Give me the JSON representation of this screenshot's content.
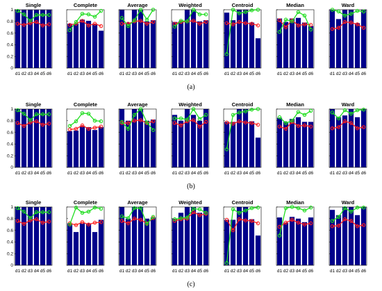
{
  "figure": {
    "panel_labels": [
      "(a)",
      "(b)",
      "(c)"
    ],
    "colors": {
      "bar": "#00008b",
      "red_series": "#ff2020",
      "green_series": "#20dd20",
      "frame": "#000000"
    }
  },
  "chart_data": [
    {
      "panel": "(a)",
      "type": "bar",
      "ylim": [
        0,
        1
      ],
      "yticks": [
        "0",
        "0.2",
        "0.4",
        "0.6",
        "0.8",
        "1"
      ],
      "categories": [
        "d1",
        "d2",
        "d3",
        "d4",
        "d5",
        "d6"
      ],
      "subplots": [
        {
          "title": "Single",
          "bars": [
            1.0,
            1.0,
            1.0,
            1.0,
            1.0,
            1.0
          ],
          "red": [
            0.76,
            0.74,
            0.77,
            0.79,
            0.73,
            0.75
          ],
          "green": [
            0.98,
            0.92,
            0.81,
            0.91,
            0.91,
            0.91
          ]
        },
        {
          "title": "Complete",
          "bars": [
            0.76,
            0.76,
            0.83,
            0.81,
            0.76,
            0.64
          ],
          "red": [
            0.74,
            0.76,
            0.81,
            0.73,
            0.76,
            0.72
          ],
          "green": [
            0.65,
            0.79,
            0.93,
            0.92,
            0.88,
            0.98
          ]
        },
        {
          "title": "Average",
          "bars": [
            1.0,
            0.78,
            1.0,
            1.0,
            0.8,
            0.82
          ],
          "red": [
            0.76,
            0.76,
            0.8,
            0.81,
            0.76,
            0.79
          ],
          "green": [
            0.86,
            0.72,
            0.82,
            1.0,
            0.83,
            1.0
          ]
        },
        {
          "title": "Weighted",
          "bars": [
            0.79,
            0.8,
            1.0,
            1.0,
            0.8,
            0.82
          ],
          "red": [
            0.76,
            0.79,
            0.8,
            0.81,
            0.76,
            0.79
          ],
          "green": [
            0.71,
            0.81,
            0.8,
            1.0,
            0.92,
            0.92
          ]
        },
        {
          "title": "Centroid",
          "bars": [
            0.95,
            0.82,
            1.0,
            1.0,
            0.78,
            0.51
          ],
          "red": [
            0.77,
            0.75,
            0.79,
            0.77,
            0.76,
            0.73
          ],
          "green": [
            0.24,
            1.0,
            0.94,
            0.96,
            0.99,
            1.0
          ]
        },
        {
          "title": "Median",
          "bars": [
            0.85,
            0.79,
            0.85,
            0.86,
            0.78,
            0.72
          ],
          "red": [
            0.82,
            0.7,
            0.82,
            0.73,
            0.75,
            0.74
          ],
          "green": [
            0.62,
            0.83,
            0.8,
            0.96,
            0.9,
            0.66
          ]
        },
        {
          "title": "Ward",
          "bars": [
            1.0,
            0.84,
            1.0,
            1.0,
            0.77,
            1.0
          ],
          "red": [
            0.67,
            0.69,
            0.79,
            0.78,
            0.75,
            0.69
          ],
          "green": [
            1.0,
            0.97,
            0.9,
            0.93,
            0.98,
            0.97
          ]
        }
      ]
    },
    {
      "panel": "(b)",
      "type": "bar",
      "ylim": [
        0,
        1
      ],
      "yticks": [
        "0",
        "0.2",
        "0.4",
        "0.6",
        "0.8",
        "1"
      ],
      "categories": [
        "d1",
        "d2",
        "d3",
        "d4",
        "d5",
        "d6"
      ],
      "subplots": [
        {
          "title": "Single",
          "bars": [
            1.0,
            1.0,
            1.0,
            1.0,
            1.0,
            1.0
          ],
          "red": [
            0.76,
            0.71,
            0.77,
            0.79,
            0.73,
            0.75
          ],
          "green": [
            0.98,
            0.92,
            0.81,
            0.91,
            0.91,
            0.91
          ]
        },
        {
          "title": "Complete",
          "bars": [
            0.62,
            0.63,
            0.71,
            0.69,
            0.64,
            0.69
          ],
          "red": [
            0.65,
            0.66,
            0.72,
            0.66,
            0.68,
            0.7
          ],
          "green": [
            0.71,
            0.79,
            0.93,
            0.92,
            0.8,
            0.79
          ]
        },
        {
          "title": "Average",
          "bars": [
            1.0,
            0.8,
            1.0,
            1.0,
            0.8,
            0.82
          ],
          "red": [
            0.76,
            0.76,
            0.8,
            0.81,
            0.76,
            0.79
          ],
          "green": [
            0.78,
            0.66,
            0.9,
            1.0,
            0.77,
            0.64
          ]
        },
        {
          "title": "Weighted",
          "bars": [
            0.9,
            0.8,
            1.0,
            0.9,
            0.8,
            1.0
          ],
          "red": [
            0.76,
            0.72,
            0.79,
            0.81,
            0.7,
            0.78
          ],
          "green": [
            0.84,
            0.84,
            0.82,
            1.0,
            0.83,
            0.9
          ]
        },
        {
          "title": "Centroid",
          "bars": [
            0.78,
            0.78,
            1.0,
            1.0,
            0.79,
            0.51
          ],
          "red": [
            0.77,
            0.75,
            0.79,
            0.77,
            0.76,
            0.73
          ],
          "green": [
            0.31,
            0.9,
            0.94,
            0.96,
            0.99,
            1.0
          ]
        },
        {
          "title": "Median",
          "bars": [
            0.85,
            0.78,
            0.83,
            0.86,
            0.78,
            0.78
          ],
          "red": [
            0.7,
            0.66,
            0.78,
            0.71,
            0.72,
            0.7
          ],
          "green": [
            0.86,
            0.76,
            0.8,
            0.95,
            0.9,
            0.97
          ]
        },
        {
          "title": "Ward",
          "bars": [
            1.0,
            0.86,
            0.89,
            1.0,
            0.86,
            1.0
          ],
          "red": [
            0.67,
            0.69,
            0.79,
            0.76,
            0.67,
            0.69
          ],
          "green": [
            0.94,
            0.84,
            0.98,
            0.92,
            0.98,
            0.99
          ]
        }
      ]
    },
    {
      "panel": "(c)",
      "type": "bar",
      "ylim": [
        0,
        1
      ],
      "yticks": [
        "0",
        "0.2",
        "0.4",
        "0.6",
        "0.8",
        "1"
      ],
      "categories": [
        "d1",
        "d2",
        "d3",
        "d4",
        "d5",
        "d6"
      ],
      "subplots": [
        {
          "title": "Single",
          "bars": [
            1.0,
            1.0,
            1.0,
            1.0,
            1.0,
            1.0
          ],
          "red": [
            0.76,
            0.71,
            0.77,
            0.79,
            0.73,
            0.75
          ],
          "green": [
            0.98,
            0.92,
            0.81,
            0.91,
            0.91,
            0.91
          ]
        },
        {
          "title": "Complete",
          "bars": [
            0.72,
            0.57,
            0.72,
            0.72,
            0.57,
            0.78
          ],
          "red": [
            0.72,
            0.69,
            0.74,
            0.7,
            0.73,
            0.74
          ],
          "green": [
            0.7,
            0.99,
            0.9,
            0.92,
            0.99,
            0.97
          ]
        },
        {
          "title": "Average",
          "bars": [
            1.0,
            0.8,
            1.0,
            1.0,
            0.8,
            0.82
          ],
          "red": [
            0.76,
            0.72,
            0.8,
            0.78,
            0.72,
            0.81
          ],
          "green": [
            0.84,
            0.81,
            0.98,
            0.98,
            0.71,
            0.83
          ]
        },
        {
          "title": "Weighted",
          "bars": [
            0.8,
            0.9,
            1.0,
            1.0,
            0.9,
            1.0
          ],
          "red": [
            0.76,
            0.79,
            0.8,
            0.91,
            0.86,
            0.88
          ],
          "green": [
            0.79,
            0.81,
            0.82,
            0.97,
            0.96,
            0.9
          ]
        },
        {
          "title": "Centroid",
          "bars": [
            0.78,
            0.78,
            1.0,
            1.0,
            0.79,
            0.51
          ],
          "red": [
            0.78,
            0.6,
            0.79,
            0.77,
            0.76,
            0.72
          ],
          "green": [
            0.04,
            0.96,
            0.9,
            0.94,
            0.98,
            0.99
          ]
        },
        {
          "title": "Median",
          "bars": [
            0.82,
            0.73,
            0.83,
            0.8,
            0.74,
            0.82
          ],
          "red": [
            0.66,
            0.73,
            0.78,
            0.73,
            0.7,
            0.72
          ],
          "green": [
            0.51,
            0.98,
            1.0,
            0.98,
            0.94,
            0.99
          ]
        },
        {
          "title": "Ward",
          "bars": [
            0.95,
            0.86,
            1.0,
            1.0,
            0.86,
            1.0
          ],
          "red": [
            0.67,
            0.68,
            0.79,
            0.76,
            0.67,
            0.69
          ],
          "green": [
            0.76,
            0.83,
            0.98,
            0.92,
            0.99,
            0.99
          ]
        }
      ]
    }
  ]
}
